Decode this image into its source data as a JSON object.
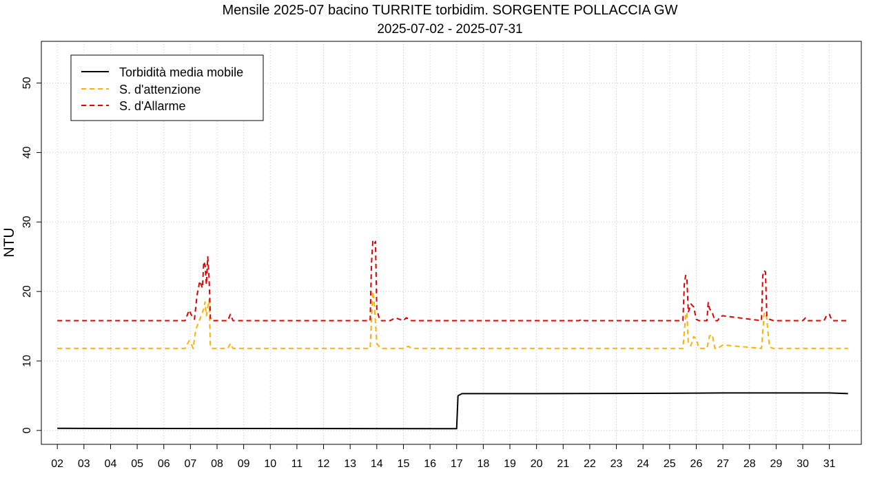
{
  "chart_data": {
    "type": "line",
    "title": "Mensile 2025-07 bacino TURRITE torbidim. SORGENTE POLLACCIA GW",
    "subtitle": "2025-07-02 - 2025-07-31",
    "xlabel": "",
    "ylabel": "NTU",
    "ylim": [
      -2,
      56
    ],
    "xlim_days": [
      1.4,
      32.2
    ],
    "yticks": [
      0,
      10,
      20,
      30,
      40,
      50
    ],
    "xticks": [
      2,
      3,
      4,
      5,
      6,
      7,
      8,
      9,
      10,
      11,
      12,
      13,
      14,
      15,
      16,
      17,
      18,
      19,
      20,
      21,
      22,
      23,
      24,
      25,
      26,
      27,
      28,
      29,
      30,
      31
    ],
    "xtick_labels": [
      "02",
      "03",
      "04",
      "05",
      "06",
      "07",
      "08",
      "09",
      "10",
      "11",
      "12",
      "13",
      "14",
      "15",
      "16",
      "17",
      "18",
      "19",
      "20",
      "21",
      "22",
      "23",
      "24",
      "25",
      "26",
      "27",
      "28",
      "29",
      "30",
      "31"
    ],
    "grid": true,
    "legend_position": "top-left",
    "series": [
      {
        "name": "Torbidità media mobile",
        "color": "#000000",
        "dash": "solid",
        "x": [
          2.0,
          17.0,
          17.05,
          17.1,
          17.2,
          20,
          25,
          27,
          29,
          31,
          31.7
        ],
        "y": [
          0.3,
          0.25,
          5.0,
          5.1,
          5.3,
          5.3,
          5.35,
          5.4,
          5.4,
          5.4,
          5.3
        ]
      },
      {
        "name": "S. d'attenzione",
        "color": "#FFB000",
        "dash": "dashed",
        "x": [
          2.0,
          6.8,
          6.95,
          7.05,
          7.1,
          7.2,
          7.3,
          7.4,
          7.5,
          7.55,
          7.6,
          7.7,
          7.75,
          7.8,
          8.0,
          8.4,
          8.5,
          8.6,
          8.7,
          13.75,
          13.85,
          13.9,
          14.0,
          14.1,
          14.15,
          15.0,
          15.1,
          15.2,
          15.3,
          25.5,
          25.6,
          25.65,
          25.7,
          25.8,
          25.9,
          26.0,
          26.1,
          26.4,
          26.5,
          26.6,
          26.7,
          26.8,
          27.0,
          28.45,
          28.55,
          28.6,
          28.65,
          28.75,
          28.9,
          31.7
        ],
        "y": [
          11.8,
          11.8,
          12.9,
          12.3,
          11.8,
          14.5,
          15.5,
          16.5,
          17.5,
          18.5,
          16.5,
          18.8,
          12.0,
          11.8,
          11.8,
          11.8,
          12.5,
          11.8,
          11.8,
          11.8,
          20.0,
          18.5,
          12.5,
          12.0,
          11.8,
          11.8,
          12.0,
          12.1,
          11.8,
          11.8,
          16.5,
          17.0,
          12.5,
          12.2,
          13.5,
          13.2,
          11.8,
          11.8,
          13.6,
          13.8,
          11.8,
          11.8,
          12.3,
          11.8,
          16.8,
          17.0,
          16.0,
          12.0,
          11.8,
          11.8
        ]
      },
      {
        "name": "S. d'Allarme",
        "color": "#DD0000",
        "dash": "dashed",
        "x": [
          2.0,
          6.8,
          6.9,
          6.95,
          7.05,
          7.15,
          7.25,
          7.35,
          7.45,
          7.5,
          7.55,
          7.6,
          7.65,
          7.7,
          7.75,
          7.8,
          8.0,
          8.4,
          8.5,
          8.6,
          8.7,
          13.75,
          13.8,
          13.85,
          13.9,
          13.95,
          14.0,
          14.1,
          14.15,
          14.5,
          14.6,
          14.7,
          15.0,
          15.1,
          15.2,
          15.3,
          21.6,
          21.7,
          21.8,
          25.5,
          25.55,
          25.6,
          25.65,
          25.7,
          25.8,
          25.9,
          26.0,
          26.1,
          26.4,
          26.45,
          26.5,
          26.6,
          26.7,
          26.8,
          26.9,
          27.0,
          28.45,
          28.5,
          28.55,
          28.6,
          28.65,
          28.75,
          28.9,
          30.0,
          30.1,
          30.2,
          30.8,
          30.9,
          31.0,
          31.1,
          31.7
        ],
        "y": [
          15.8,
          15.8,
          16.8,
          17.3,
          16.5,
          16.0,
          19.5,
          21.5,
          20.5,
          24.3,
          23.8,
          21.0,
          25.0,
          22.0,
          16.2,
          15.8,
          15.8,
          15.8,
          16.7,
          15.8,
          15.8,
          15.8,
          24.0,
          27.2,
          26.8,
          27.2,
          17.5,
          16.0,
          15.8,
          15.8,
          16.0,
          16.2,
          15.8,
          16.2,
          16.1,
          15.8,
          15.8,
          16.0,
          15.8,
          15.8,
          21.0,
          22.3,
          21.8,
          17.0,
          18.2,
          17.8,
          16.0,
          15.8,
          15.8,
          18.4,
          17.5,
          17.0,
          15.8,
          15.8,
          16.4,
          16.5,
          15.8,
          22.3,
          23.0,
          22.8,
          16.5,
          16.0,
          15.8,
          15.8,
          16.2,
          15.8,
          15.8,
          16.6,
          16.7,
          15.8,
          15.8
        ]
      }
    ]
  }
}
